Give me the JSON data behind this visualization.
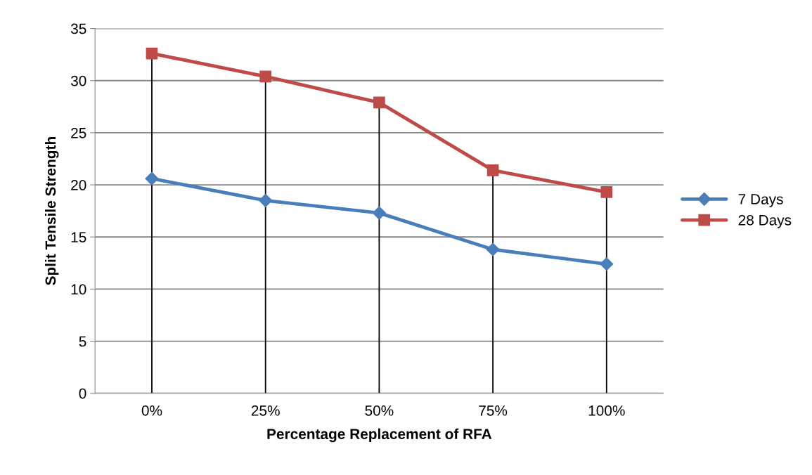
{
  "chart_data": {
    "type": "line",
    "xlabel": "Percentage Replacement of RFA",
    "ylabel": "Split Tensile Strength",
    "categories": [
      "0%",
      "25%",
      "50%",
      "75%",
      "100%"
    ],
    "series": [
      {
        "name": "7 Days",
        "color": "#4a7ebb",
        "marker": "diamond",
        "values": [
          20.6,
          18.5,
          17.3,
          13.8,
          12.4
        ]
      },
      {
        "name": "28 Days",
        "color": "#be4b48",
        "marker": "square",
        "values": [
          32.6,
          30.4,
          27.9,
          21.4,
          19.3
        ]
      }
    ],
    "ylim": [
      0,
      35
    ],
    "yticks": [
      0,
      5,
      10,
      15,
      20,
      25,
      30,
      35
    ],
    "grid": "y",
    "legend": "right",
    "line_style": "solid",
    "ref_lines": [
      {
        "axis": "x",
        "value": "0%",
        "color": "#000000"
      },
      {
        "axis": "x",
        "value": "25%",
        "color": "#000000"
      },
      {
        "axis": "x",
        "value": "50%",
        "color": "#000000"
      },
      {
        "axis": "x",
        "value": "75%",
        "color": "#000000"
      },
      {
        "axis": "x",
        "value": "100%",
        "color": "#000000"
      }
    ]
  }
}
